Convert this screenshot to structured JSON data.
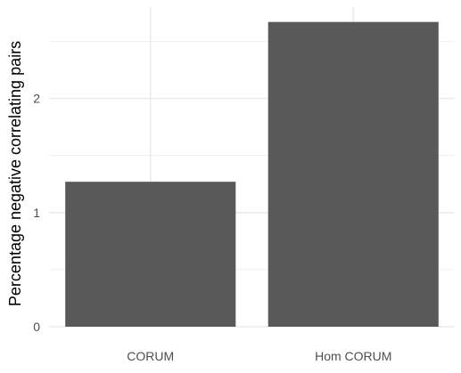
{
  "chart_data": {
    "type": "bar",
    "categories": [
      "CORUM",
      "Hom CORUM"
    ],
    "values": [
      1.27,
      2.67
    ],
    "title": "",
    "xlabel": "",
    "ylabel": "Percentage negative correlating pairs",
    "ylim": [
      0,
      2.8
    ],
    "yticks": [
      0,
      1,
      2
    ],
    "grid": true,
    "legend": "none",
    "bar_color": "#595959",
    "grid_color": "#ebebeb",
    "tick_label_color": "#4d4d4d",
    "axis_label_color": "#000000"
  }
}
